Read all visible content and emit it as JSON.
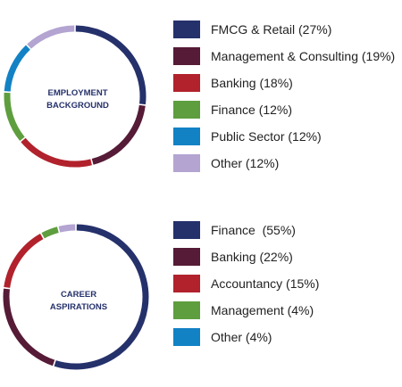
{
  "chart_data": [
    {
      "type": "pie",
      "title_lines": [
        "EMPLOYMENT",
        "BACKGROUND"
      ],
      "categories": [
        "FMCG & Retail",
        "Management & Consulting",
        "Banking",
        "Finance",
        "Public Sector",
        "Other"
      ],
      "values": [
        27,
        19,
        18,
        12,
        12,
        12
      ],
      "legend_labels": [
        "FMCG & Retail (27%)",
        "Management & Consulting (19%)",
        "Banking (18%)",
        "Finance (12%)",
        "Public Sector (12%)",
        "Other (12%)"
      ],
      "colors": [
        "#25316b",
        "#561b36",
        "#b1222c",
        "#5e9e3e",
        "#1282c5",
        "#b3a4d1"
      ],
      "legend": "right"
    },
    {
      "type": "pie",
      "title_lines": [
        "CAREER",
        "ASPIRATIONS"
      ],
      "categories": [
        "Finance",
        "Banking",
        "Accountancy",
        "Management",
        "Other"
      ],
      "values": [
        55,
        22,
        15,
        4,
        4
      ],
      "legend_labels": [
        "Finance  (55%)",
        "Banking (22%)",
        "Accountancy (15%)",
        "Management (4%)",
        "Other (4%)"
      ],
      "colors": [
        "#25316b",
        "#561b36",
        "#b1222c",
        "#5e9e3e",
        "#b3a4d1"
      ],
      "legend_colors": [
        "#25316b",
        "#561b36",
        "#b1222c",
        "#5e9e3e",
        "#1282c5"
      ],
      "legend": "right"
    }
  ]
}
